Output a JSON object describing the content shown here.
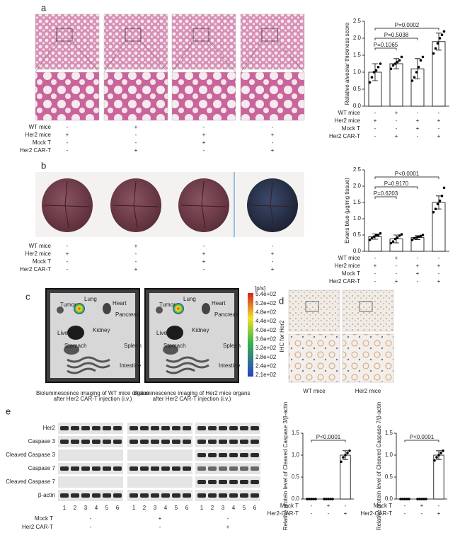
{
  "panel_labels": [
    "a",
    "b",
    "c",
    "d",
    "e"
  ],
  "panel_a": {
    "conditions": [
      {
        "name": "WT mice",
        "values": [
          "-",
          "+",
          "-",
          "-"
        ]
      },
      {
        "name": "Her2 mice",
        "values": [
          "+",
          "-",
          "+",
          "+"
        ]
      },
      {
        "name": "Mock T",
        "values": [
          "-",
          "-",
          "+",
          "-"
        ]
      },
      {
        "name": "Her2 CAR-T",
        "values": [
          "-",
          "+",
          "-",
          "+"
        ]
      }
    ]
  },
  "panel_b": {
    "conditions": [
      {
        "name": "WT mice",
        "values": [
          "-",
          "+",
          "-",
          "-"
        ]
      },
      {
        "name": "Her2 mice",
        "values": [
          "+",
          "-",
          "+",
          "+"
        ]
      },
      {
        "name": "Mock T",
        "values": [
          "-",
          "-",
          "+",
          "-"
        ]
      },
      {
        "name": "Her2 CAR-T",
        "values": [
          "-",
          "+",
          "-",
          "+"
        ]
      }
    ]
  },
  "panel_c": {
    "organs": [
      "Tumor",
      "Lung",
      "Heart",
      "Pancreas",
      "Liver",
      "Kidney",
      "Stomach",
      "Spleen",
      "Intestine"
    ],
    "captions": [
      [
        "Bioluminescence imaging of WT mice organs",
        "after Her2 CAR-T injection (i.v.)"
      ],
      [
        "Bioluminescence imaging of Her2 mice organs",
        "after Her2 CAR-T injection (i.v.)"
      ]
    ],
    "colorbar": {
      "unit": "[p/s]",
      "ticks": [
        "5.4e+02",
        "5.2e+02",
        "4.8e+02",
        "4.4e+02",
        "4.0e+02",
        "3.6e+02",
        "3.2e+02",
        "2.8e+02",
        "2.4e+02",
        "2.1e+02"
      ]
    }
  },
  "panel_d": {
    "ylabel": "IHC for Her2",
    "groups": [
      "WT mice",
      "Her2 mice"
    ]
  },
  "panel_e": {
    "blot_rows": [
      "Her2",
      "Caspase 3",
      "Cleaved Caspase 3",
      "Caspase 7",
      "Cleaved Caspase 7",
      "β-actin"
    ],
    "lanes": [
      "1",
      "2",
      "3",
      "4",
      "5",
      "6"
    ],
    "conditions": [
      {
        "name": "Mock T",
        "values": [
          "-",
          "+",
          "-"
        ]
      },
      {
        "name": "Her2 CAR-T",
        "values": [
          "-",
          "-",
          "+"
        ]
      }
    ]
  },
  "chart_data": [
    {
      "type": "bar",
      "ylabel": "Relative alveolar thickness score",
      "color": "#ffffff",
      "ylim": [
        0,
        2.5
      ],
      "yticks": [
        {
          "value": 0,
          "label": "0.0"
        },
        0.5,
        {
          "value": 1,
          "label": "1.0"
        },
        1.5,
        {
          "value": 2,
          "label": "2.0"
        },
        2.5
      ],
      "values": [
        1.0,
        1.25,
        1.1,
        1.9
      ],
      "errors": [
        0.25,
        0.15,
        0.3,
        0.25
      ],
      "points": [
        [
          0.7,
          0.85,
          1.0,
          1.05,
          1.15,
          1.25
        ],
        [
          1.1,
          1.2,
          1.25,
          1.3,
          1.35,
          1.45
        ],
        [
          0.75,
          0.85,
          1.0,
          1.15,
          1.35,
          1.45
        ],
        [
          1.55,
          1.7,
          1.85,
          2.0,
          2.1,
          2.2
        ]
      ],
      "annotations": [
        "P=0.1065",
        "P=0.5038",
        "P=0.0002"
      ],
      "conditions": [
        {
          "name": "WT mice",
          "values": [
            "-",
            "+",
            "-",
            "-"
          ]
        },
        {
          "name": "Her2 mice",
          "values": [
            "+",
            "-",
            "+",
            "+"
          ]
        },
        {
          "name": "Mock T",
          "values": [
            "-",
            "-",
            "+",
            "-"
          ]
        },
        {
          "name": "Her2 CAR-T",
          "values": [
            "-",
            "+",
            "-",
            "+"
          ]
        }
      ]
    },
    {
      "type": "bar",
      "ylabel": "Evans blue (μg/mg tissue)",
      "color": "#ffffff",
      "ylim": [
        0,
        2.5
      ],
      "yticks": [
        {
          "value": 0,
          "label": "0.0"
        },
        0.5,
        {
          "value": 1,
          "label": "1.0"
        },
        1.5,
        {
          "value": 2,
          "label": "2.0"
        },
        2.5
      ],
      "values": [
        0.45,
        0.38,
        0.42,
        1.5
      ],
      "errors": [
        0.08,
        0.12,
        0.06,
        0.2
      ],
      "points": [
        [
          0.35,
          0.4,
          0.45,
          0.5,
          0.5,
          0.55
        ],
        [
          0.25,
          0.3,
          0.38,
          0.42,
          0.48,
          0.52
        ],
        [
          0.35,
          0.4,
          0.42,
          0.45,
          0.47,
          0.5
        ],
        [
          1.2,
          1.3,
          1.45,
          1.55,
          1.7,
          1.95
        ]
      ],
      "annotations": [
        "P=0.6203",
        "P=0.9170",
        "P<0.0001"
      ],
      "conditions": [
        {
          "name": "WT mice",
          "values": [
            "-",
            "+",
            "-",
            "-"
          ]
        },
        {
          "name": "Her2 mice",
          "values": [
            "+",
            "-",
            "+",
            "+"
          ]
        },
        {
          "name": "Mock T",
          "values": [
            "-",
            "-",
            "+",
            "-"
          ]
        },
        {
          "name": "Her2 CAR-T",
          "values": [
            "-",
            "+",
            "-",
            "+"
          ]
        }
      ]
    },
    {
      "type": "bar",
      "ylabel": "Relative protein level of Cleaved Caspase 3/β-actin",
      "color": "#ffffff",
      "ylim": [
        0,
        1.5
      ],
      "yticks": [
        {
          "value": 0,
          "label": "0.0"
        },
        0.5,
        {
          "value": 1,
          "label": "1.0"
        },
        1.5
      ],
      "values": [
        0,
        0,
        1.0
      ],
      "errors": [
        0,
        0,
        0.1
      ],
      "points": [
        [
          0,
          0,
          0,
          0,
          0
        ],
        [
          0,
          0,
          0,
          0,
          0
        ],
        [
          0.85,
          0.95,
          1.0,
          1.05,
          1.1
        ]
      ],
      "annotations": [
        "P<0.0001"
      ],
      "conditions": [
        {
          "name": "Mock T",
          "values": [
            "-",
            "+",
            "-"
          ]
        },
        {
          "name": "Her2-CAR-T",
          "values": [
            "-",
            "-",
            "+"
          ]
        }
      ]
    },
    {
      "type": "bar",
      "ylabel": "Relative protein level of Cleaved Caspase 7/β-actin",
      "color": "#ffffff",
      "ylim": [
        0,
        1.5
      ],
      "yticks": [
        {
          "value": 0,
          "label": "0.0"
        },
        0.5,
        {
          "value": 1,
          "label": "1.0"
        },
        1.5
      ],
      "values": [
        0,
        0,
        1.0
      ],
      "errors": [
        0,
        0,
        0.1
      ],
      "points": [
        [
          0,
          0,
          0,
          0,
          0
        ],
        [
          0,
          0,
          0,
          0,
          0
        ],
        [
          0.88,
          0.95,
          1.0,
          1.05,
          1.1
        ]
      ],
      "annotations": [
        "P<0.0001"
      ],
      "conditions": [
        {
          "name": "Mock T",
          "values": [
            "-",
            "+",
            "-"
          ]
        },
        {
          "name": "Her2-CAR-T",
          "values": [
            "-",
            "-",
            "+"
          ]
        }
      ]
    }
  ]
}
